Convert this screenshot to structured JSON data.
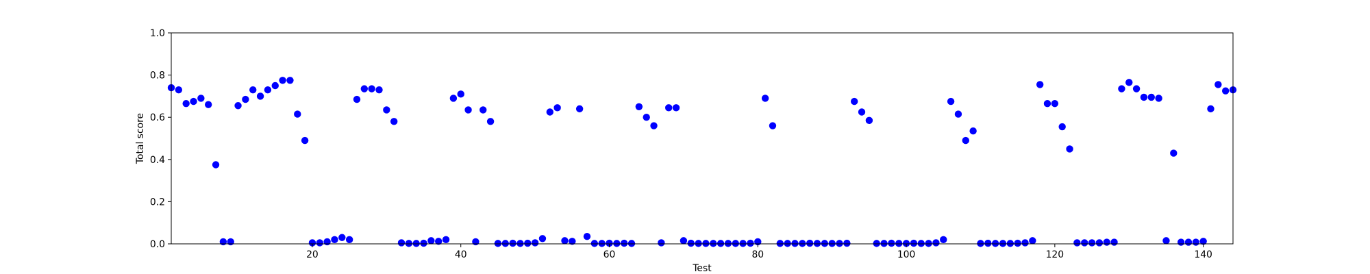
{
  "chart_data": {
    "type": "scatter",
    "title": "",
    "xlabel": "Test",
    "ylabel": "Total score",
    "xlim": [
      1,
      144
    ],
    "ylim": [
      0.0,
      1.0
    ],
    "grid": false,
    "legend": null,
    "marker_color": "#0000ff",
    "x_ticks": [
      20,
      40,
      60,
      80,
      100,
      120,
      140
    ],
    "x_tick_labels": [
      "20",
      "40",
      "60",
      "80",
      "100",
      "120",
      "140"
    ],
    "y_ticks": [
      0.0,
      0.2,
      0.4,
      0.6,
      0.8,
      1.0
    ],
    "y_tick_labels": [
      "0.0",
      "0.2",
      "0.4",
      "0.6",
      "0.8",
      "1.0"
    ],
    "series": [
      {
        "x": [
          1,
          2,
          3,
          4,
          5,
          6,
          7,
          8,
          9,
          10,
          11,
          12,
          13,
          14,
          15,
          16,
          17,
          18,
          19,
          20,
          21,
          22,
          23,
          24,
          25,
          26,
          27,
          28,
          29,
          30,
          31,
          32,
          33,
          34,
          35,
          36,
          37,
          38,
          39,
          40,
          41,
          42,
          43,
          44,
          45,
          46,
          47,
          48,
          49,
          50,
          51,
          52,
          53,
          54,
          55,
          56,
          57,
          58,
          59,
          60,
          61,
          62,
          63,
          64,
          65,
          66,
          67,
          68,
          69,
          70,
          71,
          72,
          73,
          74,
          75,
          76,
          77,
          78,
          79,
          80,
          81,
          82,
          83,
          84,
          85,
          86,
          87,
          88,
          89,
          90,
          91,
          92,
          93,
          94,
          95,
          96,
          97,
          98,
          99,
          100,
          101,
          102,
          103,
          104,
          105,
          106,
          107,
          108,
          109,
          110,
          111,
          112,
          113,
          114,
          115,
          116,
          117,
          118,
          119,
          120,
          121,
          122,
          123,
          124,
          125,
          126,
          127,
          128,
          129,
          130,
          131,
          132,
          133,
          134,
          135,
          136,
          137,
          138,
          139,
          140,
          141,
          142,
          143,
          144
        ],
        "y": [
          0.74,
          0.73,
          0.665,
          0.675,
          0.69,
          0.66,
          0.375,
          0.01,
          0.01,
          0.655,
          0.685,
          0.73,
          0.7,
          0.73,
          0.75,
          0.775,
          0.775,
          0.615,
          0.49,
          0.005,
          0.005,
          0.01,
          0.02,
          0.03,
          0.02,
          0.685,
          0.735,
          0.735,
          0.73,
          0.635,
          0.58,
          0.005,
          0.002,
          0.002,
          0.003,
          0.015,
          0.012,
          0.02,
          0.69,
          0.71,
          0.635,
          0.01,
          0.635,
          0.58,
          0.002,
          0.002,
          0.003,
          0.002,
          0.003,
          0.005,
          0.025,
          0.625,
          0.645,
          0.015,
          0.012,
          0.64,
          0.035,
          0.002,
          0.002,
          0.003,
          0.002,
          0.003,
          0.002,
          0.65,
          0.6,
          0.56,
          0.005,
          0.645,
          0.645,
          0.015,
          0.003,
          0.002,
          0.002,
          0.002,
          0.002,
          0.002,
          0.002,
          0.002,
          0.003,
          0.01,
          0.69,
          0.56,
          0.002,
          0.002,
          0.002,
          0.002,
          0.003,
          0.002,
          0.002,
          0.002,
          0.002,
          0.003,
          0.675,
          0.625,
          0.585,
          0.002,
          0.002,
          0.003,
          0.002,
          0.002,
          0.003,
          0.002,
          0.002,
          0.005,
          0.02,
          0.675,
          0.615,
          0.49,
          0.535,
          0.002,
          0.003,
          0.002,
          0.002,
          0.002,
          0.003,
          0.005,
          0.015,
          0.755,
          0.665,
          0.665,
          0.555,
          0.45,
          0.005,
          0.005,
          0.005,
          0.005,
          0.008,
          0.008,
          0.735,
          0.765,
          0.735,
          0.695,
          0.695,
          0.69,
          0.015,
          0.43,
          0.008,
          0.008,
          0.008,
          0.012,
          0.64,
          0.755,
          0.725,
          0.73
        ]
      }
    ]
  }
}
